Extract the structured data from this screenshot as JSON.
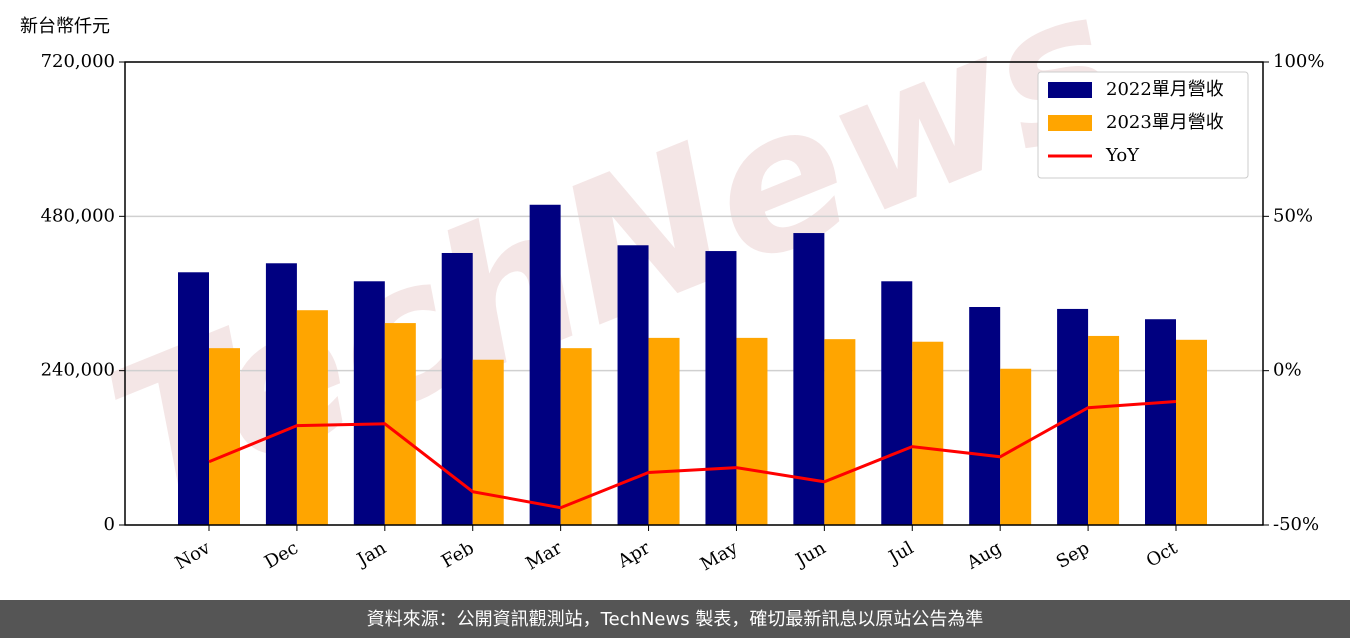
{
  "chart_data": {
    "type": "bar",
    "y_label": "新台幣仟元",
    "watermark": "TechNews",
    "footer": "資料來源：公開資訊觀測站，TechNews 製表，確切最新訊息以原站公告為準",
    "categories": [
      "Nov",
      "Dec",
      "Jan",
      "Feb",
      "Mar",
      "Apr",
      "May",
      "Jun",
      "Jul",
      "Aug",
      "Sep",
      "Oct"
    ],
    "series": [
      {
        "name": "2022單月營收",
        "type": "bar",
        "color": "#000080",
        "values": [
          393000,
          407000,
          379000,
          423000,
          498000,
          435000,
          426000,
          454000,
          379000,
          339000,
          336000,
          320000
        ]
      },
      {
        "name": "2023單月營收",
        "type": "bar",
        "color": "#ffa500",
        "values": [
          275000,
          334000,
          314000,
          257000,
          275000,
          291000,
          291000,
          289000,
          285000,
          243000,
          294000,
          288000
        ]
      },
      {
        "name": "YoY",
        "type": "line",
        "axis": "y2",
        "color": "#ff0000",
        "values": [
          -29.5,
          -17.8,
          -17.2,
          -39.2,
          -44.4,
          -33.0,
          -31.4,
          -36.0,
          -24.6,
          -27.9,
          -12.0,
          -10.0
        ]
      }
    ],
    "ylim": [
      0,
      720000
    ],
    "yticks": [
      0,
      {
        "value": 240000,
        "label": "240,000"
      },
      {
        "value": 480000,
        "label": "480,000"
      },
      {
        "value": 720000,
        "label": "720,000"
      }
    ],
    "y2lim": [
      -50,
      100
    ],
    "y2ticks": [
      {
        "value": -50,
        "label": "-50%"
      },
      {
        "value": 0,
        "label": "0%"
      },
      {
        "value": 50,
        "label": "50%"
      },
      {
        "value": 100,
        "label": "100%"
      }
    ],
    "grid": true,
    "legend": "upper right"
  }
}
